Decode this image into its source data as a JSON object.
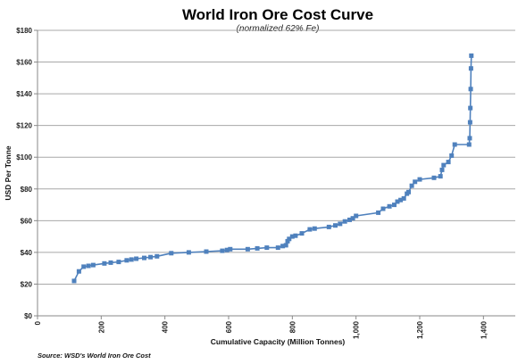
{
  "chart_data": {
    "type": "line",
    "title": "World Iron Ore Cost Curve",
    "subtitle": "(normalized 62% Fe)",
    "xlabel": "Cumulative Capacity (Million Tonnes)",
    "ylabel": "USD Per Tonne",
    "source": "Source: WSD's World Iron Ore Cost",
    "xlim": [
      0,
      1500
    ],
    "ylim": [
      0,
      180
    ],
    "x_ticks": [
      {
        "value": 0,
        "label": "0"
      },
      {
        "value": 200,
        "label": "200"
      },
      {
        "value": 400,
        "label": "400"
      },
      {
        "value": 600,
        "label": "600"
      },
      {
        "value": 800,
        "label": "800"
      },
      {
        "value": 1000,
        "label": "1,000"
      },
      {
        "value": 1200,
        "label": "1,200"
      },
      {
        "value": 1400,
        "label": "1,400"
      }
    ],
    "y_ticks": [
      {
        "value": 0,
        "label": "$0"
      },
      {
        "value": 20,
        "label": "$20"
      },
      {
        "value": 40,
        "label": "$40"
      },
      {
        "value": 60,
        "label": "$60"
      },
      {
        "value": 80,
        "label": "$80"
      },
      {
        "value": 100,
        "label": "$100"
      },
      {
        "value": 120,
        "label": "$120"
      },
      {
        "value": 140,
        "label": "$140"
      },
      {
        "value": 160,
        "label": "$160"
      },
      {
        "value": 180,
        "label": "$180"
      }
    ],
    "grid": "horizontal",
    "legend": "none",
    "color": "#4f81bd",
    "series": [
      {
        "x": [
          115,
          130,
          145,
          160,
          175,
          210,
          230,
          255,
          280,
          295,
          310,
          335,
          355,
          375,
          420,
          475,
          530,
          580,
          595,
          605,
          660,
          690,
          720,
          755,
          770,
          780,
          785,
          790,
          800,
          810,
          830,
          855,
          870,
          915,
          935,
          950,
          965,
          980,
          990,
          1000,
          1070,
          1085,
          1105,
          1120,
          1130,
          1140,
          1150,
          1160,
          1165,
          1175,
          1185,
          1200,
          1245,
          1265,
          1270,
          1275,
          1290,
          1300,
          1310,
          1355,
          1357,
          1358,
          1359,
          1360,
          1361,
          1362
        ],
        "y": [
          22,
          28,
          31,
          31.5,
          32,
          33,
          33.5,
          34,
          35,
          35.5,
          36,
          36.5,
          37,
          37.5,
          39.5,
          40,
          40.5,
          41,
          41.5,
          42,
          42,
          42.5,
          43,
          43,
          44,
          44.5,
          47,
          48.5,
          50,
          50.5,
          52,
          54.5,
          55,
          56,
          57,
          58,
          59.5,
          60.5,
          61.5,
          63,
          65,
          67.5,
          69,
          70,
          72,
          73,
          74,
          77,
          78,
          82,
          84.5,
          86,
          87,
          88,
          92,
          95,
          97,
          101,
          108,
          108,
          112,
          122,
          131,
          143,
          156,
          164
        ]
      }
    ]
  }
}
